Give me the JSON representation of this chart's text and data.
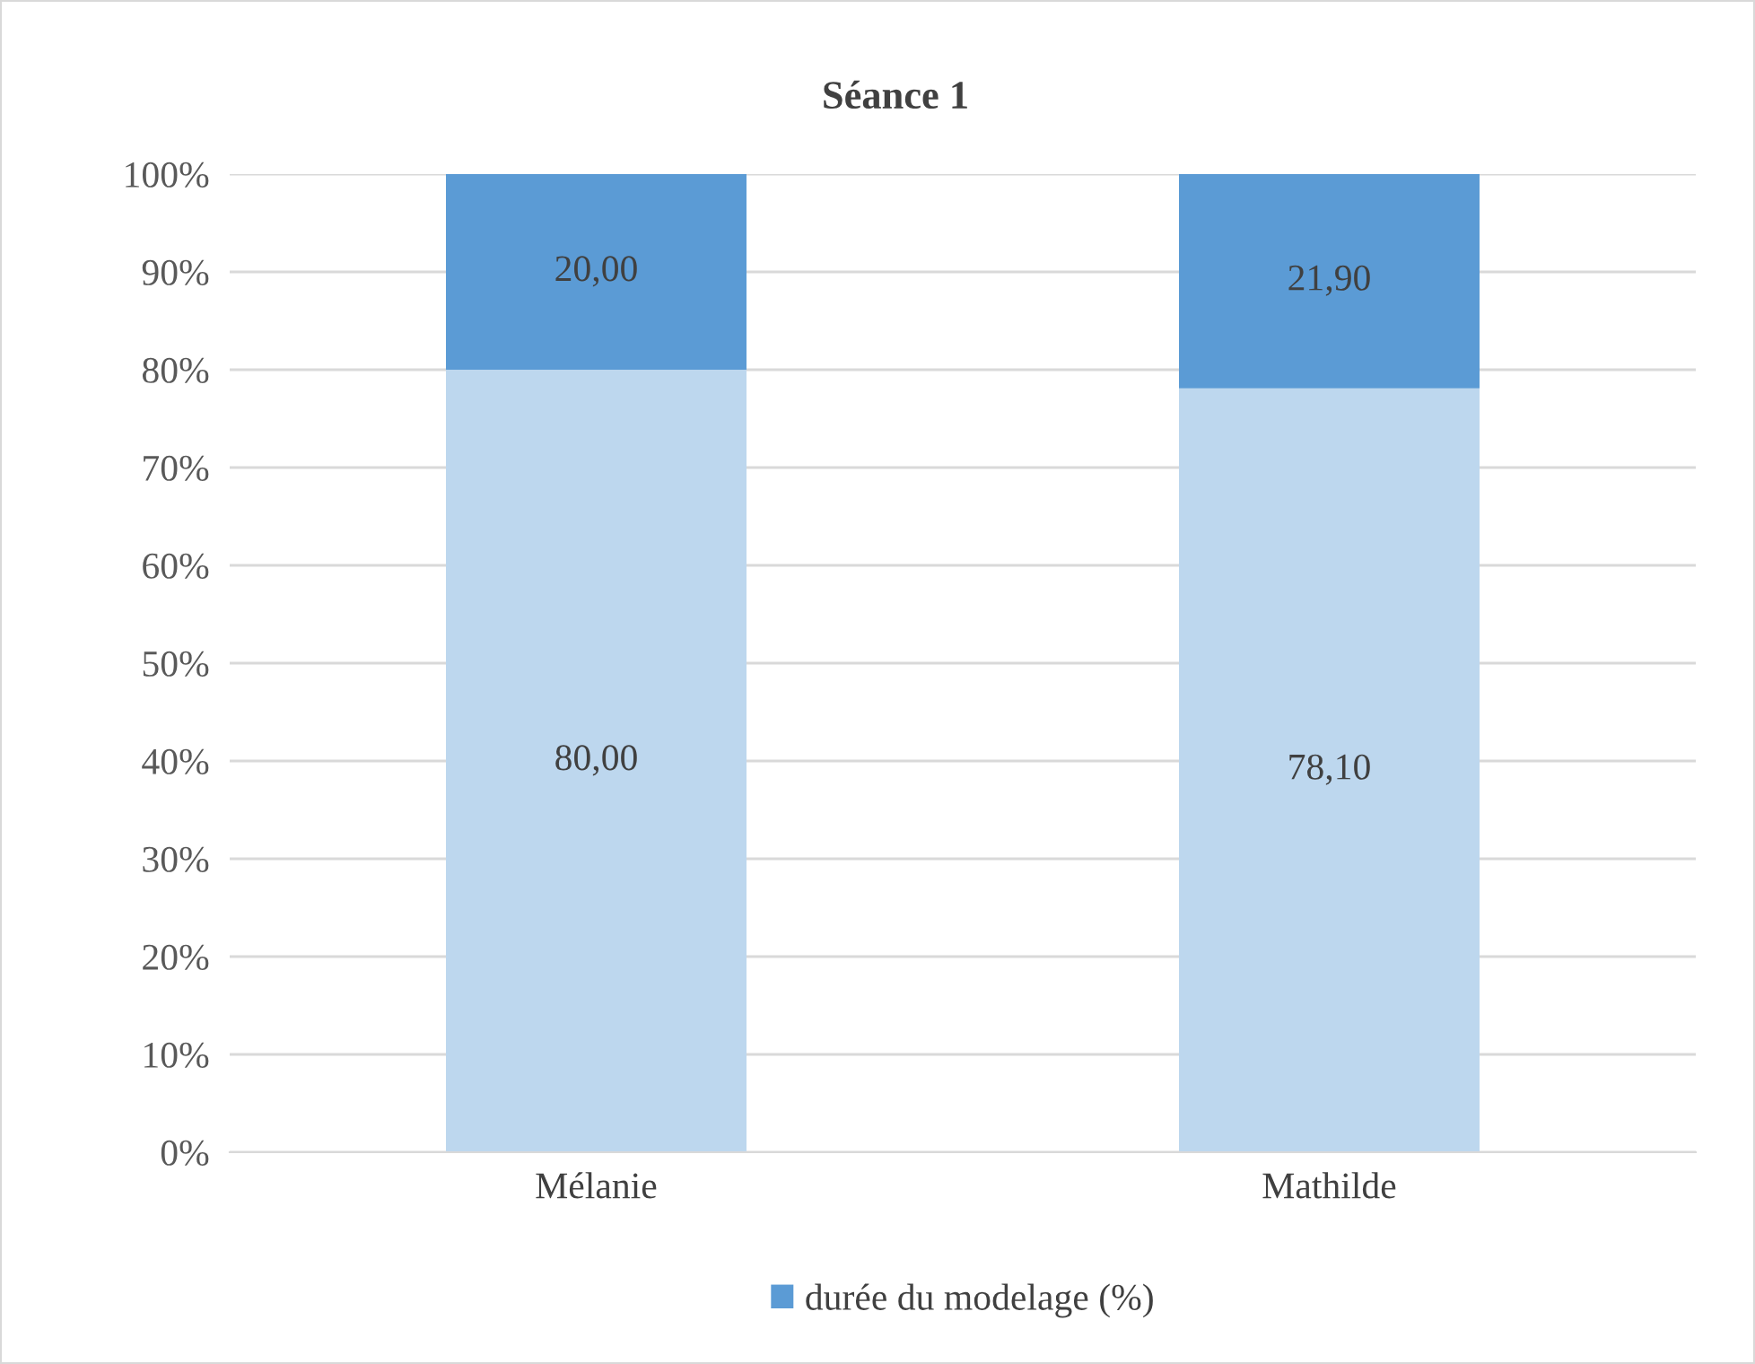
{
  "chart_data": {
    "type": "bar",
    "title": "Séance 1",
    "stacked": true,
    "categories": [
      "Mélanie",
      "Mathilde"
    ],
    "series": [
      {
        "color": "#bdd7ee",
        "values": [
          80.0,
          78.1
        ],
        "value_labels": [
          "80,00",
          "78,10"
        ]
      },
      {
        "name": "durée du modelage (%)",
        "color": "#5b9bd5",
        "values": [
          20.0,
          21.9
        ],
        "value_labels": [
          "20,00",
          "21,90"
        ]
      }
    ],
    "ylim": [
      0,
      100
    ],
    "yticks": [
      {
        "value": 0,
        "label": "0%"
      },
      {
        "value": 10,
        "label": "10%"
      },
      {
        "value": 20,
        "label": "20%"
      },
      {
        "value": 30,
        "label": "30%"
      },
      {
        "value": 40,
        "label": "40%"
      },
      {
        "value": 50,
        "label": "50%"
      },
      {
        "value": 60,
        "label": "60%"
      },
      {
        "value": 70,
        "label": "70%"
      },
      {
        "value": 80,
        "label": "80%"
      },
      {
        "value": 90,
        "label": "90%"
      },
      {
        "value": 100,
        "label": "100%"
      }
    ],
    "grid": "y",
    "legend": "bottom"
  }
}
